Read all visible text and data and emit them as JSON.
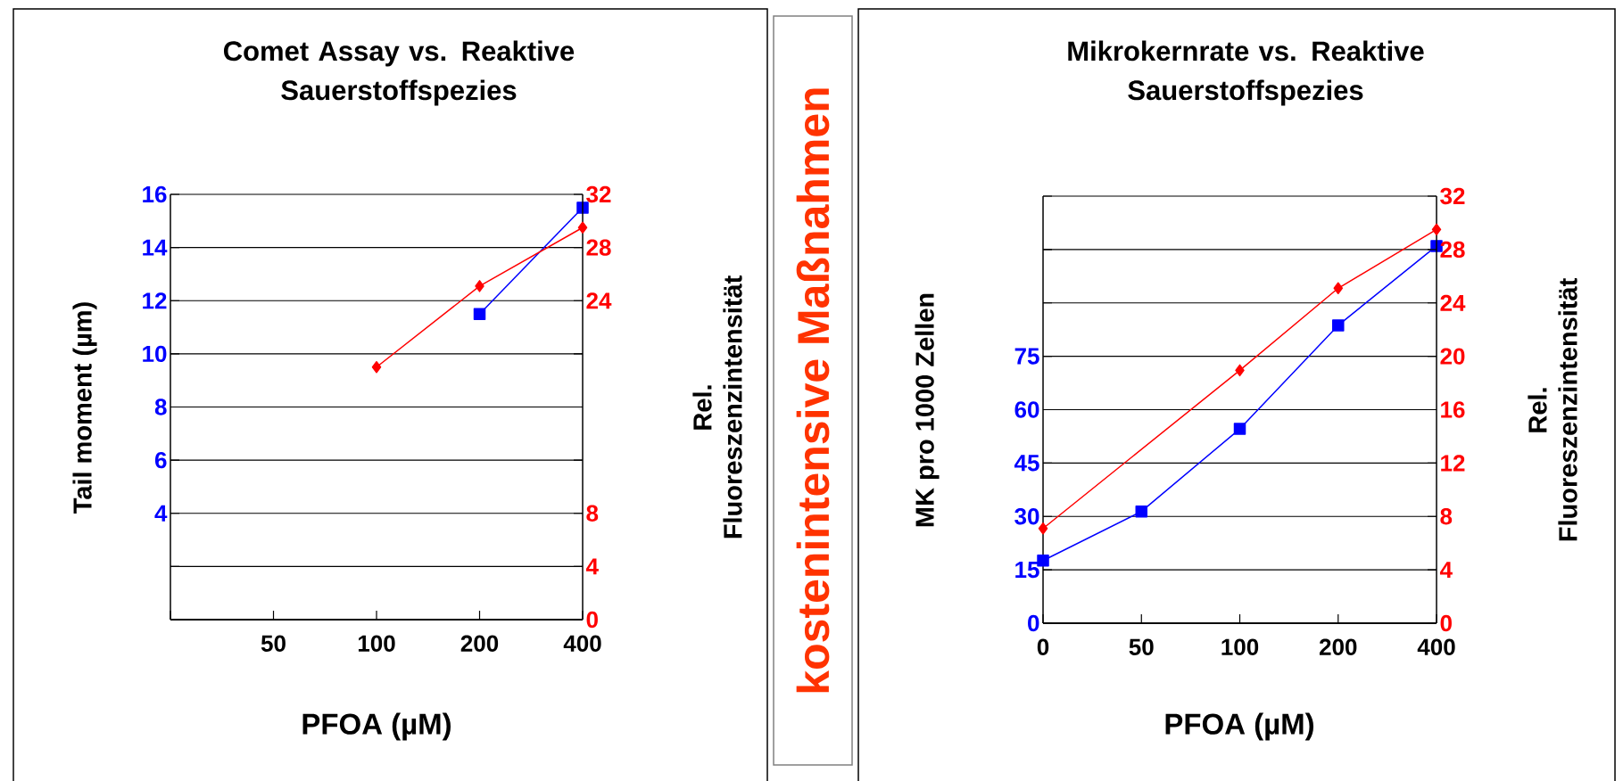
{
  "chart_data": [
    {
      "type": "line",
      "title": "Comet Assay vs. Reaktive Sauerstoffspezies",
      "xlabel": "PFOA (µM)",
      "ylabel": "Tail moment (µm)",
      "y2label": "Rel. Fluoreszenzintensität",
      "categories": [
        null,
        "50",
        "100",
        "200",
        "400"
      ],
      "ylim": [
        0,
        16
      ],
      "yticks": [
        {
          "value": 0,
          "label": null
        },
        {
          "value": 2,
          "label": null
        },
        4,
        6,
        8,
        10,
        12,
        14,
        16
      ],
      "y2lim": [
        0,
        32
      ],
      "y2ticks": [
        0,
        4,
        8,
        {
          "value": 12,
          "label": null
        },
        {
          "value": 16,
          "label": null
        },
        {
          "value": 20,
          "label": null
        },
        24,
        28,
        32
      ],
      "grid": "y",
      "series": [
        {
          "color": "#0000ff",
          "marker": "square",
          "values": [
            null,
            null,
            null,
            11.5,
            15.5
          ]
        },
        {
          "color": "#ff0000",
          "marker": "diamond",
          "axis": "y2",
          "values": [
            null,
            null,
            19.0,
            25.1,
            29.5
          ]
        }
      ],
      "annotations": [
        "kostenintensive Maßnahmen"
      ]
    },
    {
      "type": "line",
      "title": "Mikrokernrate vs. Reaktive Sauerstoffspezies",
      "xlabel": "PFOA (µM)",
      "ylabel": "MK pro 1000 Zellen",
      "y2label": "Rel. Fluoreszenzintensität",
      "categories": [
        "0",
        "50",
        "100",
        "200",
        "400"
      ],
      "ylim": [
        0,
        120
      ],
      "yticks": [
        0,
        15,
        30,
        45,
        60,
        75,
        {
          "value": 90,
          "label": null
        },
        {
          "value": 105,
          "label": null
        },
        {
          "value": 120,
          "label": null
        }
      ],
      "y2lim": [
        0,
        32
      ],
      "y2ticks": [
        0,
        4,
        8,
        12,
        16,
        20,
        24,
        28,
        32
      ],
      "grid": "y",
      "series": [
        {
          "color": "#0000ff",
          "marker": "square",
          "values": [
            17.6,
            31.4,
            54.6,
            83.7,
            106
          ]
        },
        {
          "color": "#ff0000",
          "marker": "diamond",
          "axis": "y2",
          "values": [
            7.1,
            null,
            18.95,
            25.1,
            29.5
          ]
        }
      ]
    }
  ]
}
